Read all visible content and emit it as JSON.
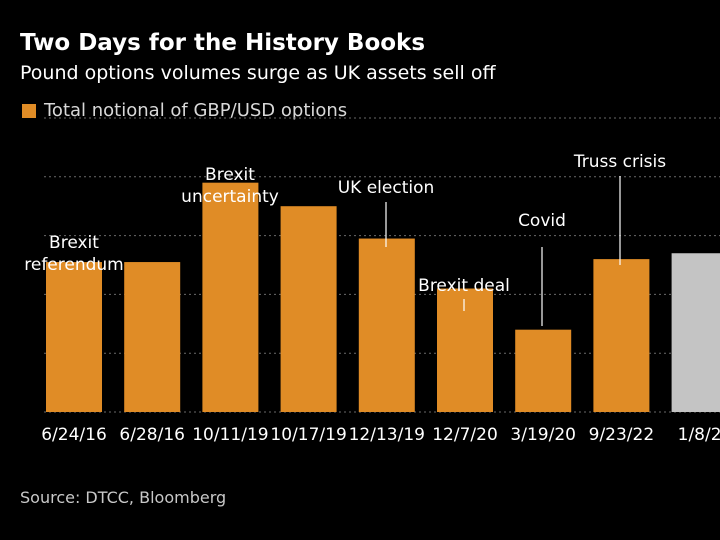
{
  "header": {
    "title": "Two Days for the History Books",
    "subtitle": "Pound options volumes surge as UK assets sell off"
  },
  "legend": {
    "label": "Total notional of GBP/USD options"
  },
  "source": "Source: DTCC, Bloomberg",
  "colors": {
    "background": "#000000",
    "bar": "#e08c26",
    "highlight_bar": "#c4c4c4",
    "grid": "#6a6a6a",
    "text": "#ffffff",
    "muted_text": "#c8c8c8"
  },
  "chart_data": {
    "type": "bar",
    "title": "Two Days for the History Books",
    "subtitle": "Pound options volumes surge as UK assets sell off",
    "categories": [
      "6/24/16",
      "6/28/16",
      "10/11/19",
      "10/17/19",
      "12/13/19",
      "12/7/20",
      "3/19/20",
      "9/23/22",
      "1/8/2"
    ],
    "series": [
      {
        "name": "Total notional of GBP/USD options",
        "values": [
          51,
          51,
          78,
          70,
          59,
          42,
          28,
          52,
          54
        ]
      }
    ],
    "bar_colors": [
      "#e08c26",
      "#e08c26",
      "#e08c26",
      "#e08c26",
      "#e08c26",
      "#e08c26",
      "#e08c26",
      "#e08c26",
      "#c4c4c4"
    ],
    "ylim": [
      0,
      100
    ],
    "gridlines": [
      0,
      20,
      40,
      60,
      80,
      100
    ],
    "grid": true,
    "xlabel": "",
    "ylabel": "",
    "legend_position": "top-left",
    "annotations": [
      {
        "index": 0,
        "lines": [
          "Brexit",
          "referendum"
        ],
        "leader": false
      },
      {
        "index": 2,
        "lines": [
          "Brexit",
          "uncertainty"
        ],
        "leader": false
      },
      {
        "index": 4,
        "lines": [
          "UK election"
        ],
        "leader": true
      },
      {
        "index": 5,
        "lines": [
          "Brexit deal"
        ],
        "leader": true
      },
      {
        "index": 6,
        "lines": [
          "Covid"
        ],
        "leader": true
      },
      {
        "index": 7,
        "lines": [
          "Truss crisis"
        ],
        "leader": true
      }
    ]
  }
}
